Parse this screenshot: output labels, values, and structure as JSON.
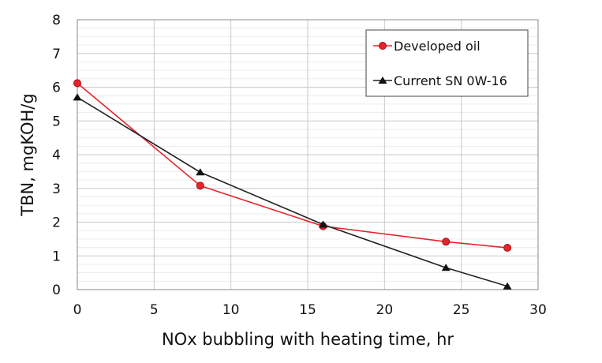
{
  "chart_data": {
    "type": "line",
    "xlabel": "NOx bubbling with heating time, hr",
    "ylabel": "TBN, mgKOH/g",
    "xlim": [
      0,
      30
    ],
    "ylim": [
      0,
      8
    ],
    "x_ticks": [
      0,
      5,
      10,
      15,
      20,
      25,
      30
    ],
    "y_ticks": [
      0,
      1,
      2,
      3,
      4,
      5,
      6,
      7,
      8
    ],
    "grid": true,
    "legend_position": "top-right",
    "series": [
      {
        "name": "Developed oil",
        "color": "#e8232a",
        "marker": "circle",
        "x": [
          0,
          8,
          16,
          24,
          28
        ],
        "y": [
          6.12,
          3.08,
          1.88,
          1.42,
          1.24
        ]
      },
      {
        "name": "Current SN 0W-16",
        "color": "#222222",
        "marker": "triangle",
        "x": [
          0,
          8,
          16,
          24,
          28
        ],
        "y": [
          5.7,
          3.48,
          1.93,
          0.65,
          0.1
        ]
      }
    ]
  }
}
